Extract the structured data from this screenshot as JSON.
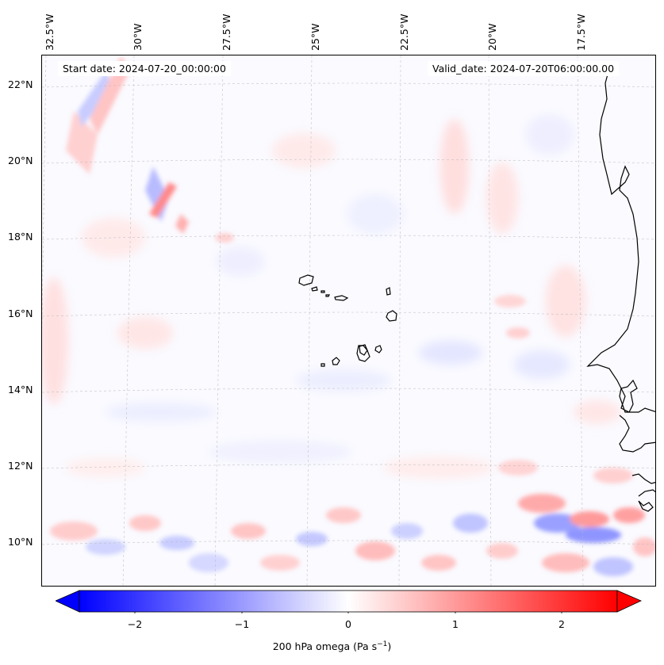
{
  "header": {
    "start_date": "Start date: 2024-07-20_00:00:00",
    "valid_date": "Valid_date: 2024-07-20T06:00:00.00"
  },
  "map": {
    "lon_labels": [
      "32.5°W",
      "30°W",
      "27.5°W",
      "25°W",
      "22.5°W",
      "20°W",
      "17.5°W"
    ],
    "lat_labels": [
      "22°N",
      "20°N",
      "18°N",
      "16°N",
      "14°N",
      "12°N",
      "10°N"
    ],
    "gridlines": true,
    "coastline_color": "#000000"
  },
  "colorbar": {
    "ticks": [
      "−2",
      "−1",
      "0",
      "1",
      "2"
    ],
    "label_prefix": "200 hPa omega (Pa s",
    "label_exp": "−1",
    "label_suffix": ")",
    "min_color": "#0000ff",
    "mid_color": "#ffffff",
    "max_color": "#ff0000",
    "extend": "both"
  }
}
